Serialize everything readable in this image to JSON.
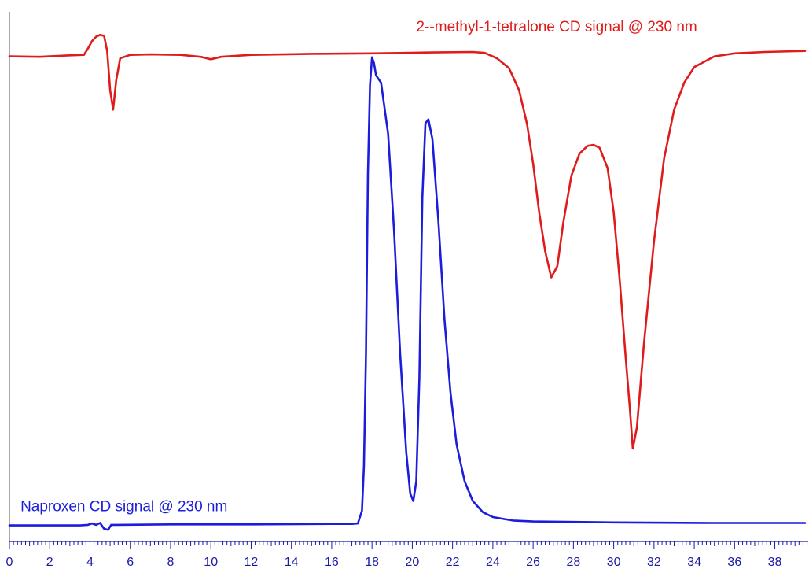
{
  "chart_data": {
    "type": "line",
    "xlim": [
      0,
      39.5
    ],
    "ylim": [
      -0.02,
      1.05
    ],
    "grid": false,
    "legend": "none",
    "x_major_ticks": [
      0,
      2,
      4,
      6,
      8,
      10,
      12,
      14,
      16,
      18,
      20,
      22,
      24,
      26,
      28,
      30,
      32,
      34,
      36,
      38
    ],
    "x_tick_labels": [
      "0",
      "2",
      "4",
      "6",
      "8",
      "10",
      "12",
      "14",
      "16",
      "18",
      "20",
      "22",
      "24",
      "26",
      "28",
      "30",
      "32",
      "34",
      "36",
      "38"
    ],
    "x_minor_step": 0.2,
    "axis_color": "#1a1aa6",
    "series": [
      {
        "color": "#e01b1b",
        "label": "2--methyl-1-tetralone CD signal @ 230 nm",
        "label_anchor": [
          20.2,
          1.01
        ],
        "points": [
          [
            0,
            0.959
          ],
          [
            1.5,
            0.958
          ],
          [
            3.0,
            0.961
          ],
          [
            3.7,
            0.962
          ],
          [
            3.9,
            0.975
          ],
          [
            4.1,
            0.99
          ],
          [
            4.3,
            0.999
          ],
          [
            4.5,
            1.003
          ],
          [
            4.7,
            1.001
          ],
          [
            4.85,
            0.97
          ],
          [
            5.0,
            0.89
          ],
          [
            5.15,
            0.85
          ],
          [
            5.3,
            0.91
          ],
          [
            5.5,
            0.955
          ],
          [
            6.0,
            0.962
          ],
          [
            7.0,
            0.963
          ],
          [
            8.5,
            0.962
          ],
          [
            9.5,
            0.958
          ],
          [
            10.0,
            0.953
          ],
          [
            10.5,
            0.958
          ],
          [
            12.0,
            0.962
          ],
          [
            15.0,
            0.964
          ],
          [
            18.0,
            0.965
          ],
          [
            21.0,
            0.967
          ],
          [
            23.0,
            0.968
          ],
          [
            23.6,
            0.966
          ],
          [
            24.2,
            0.955
          ],
          [
            24.8,
            0.935
          ],
          [
            25.3,
            0.89
          ],
          [
            25.7,
            0.82
          ],
          [
            26.0,
            0.74
          ],
          [
            26.3,
            0.64
          ],
          [
            26.6,
            0.56
          ],
          [
            26.9,
            0.507
          ],
          [
            27.2,
            0.53
          ],
          [
            27.5,
            0.62
          ],
          [
            27.9,
            0.715
          ],
          [
            28.3,
            0.76
          ],
          [
            28.7,
            0.776
          ],
          [
            29.0,
            0.778
          ],
          [
            29.3,
            0.772
          ],
          [
            29.7,
            0.73
          ],
          [
            30.0,
            0.64
          ],
          [
            30.3,
            0.5
          ],
          [
            30.6,
            0.34
          ],
          [
            30.8,
            0.24
          ],
          [
            30.95,
            0.157
          ],
          [
            31.15,
            0.2
          ],
          [
            31.5,
            0.37
          ],
          [
            32.0,
            0.58
          ],
          [
            32.5,
            0.75
          ],
          [
            33.0,
            0.85
          ],
          [
            33.5,
            0.905
          ],
          [
            34.0,
            0.937
          ],
          [
            35.0,
            0.959
          ],
          [
            36.0,
            0.965
          ],
          [
            37.5,
            0.968
          ],
          [
            39.5,
            0.97
          ]
        ]
      },
      {
        "color": "#1c1cdc",
        "label": "Naproxen CD signal @ 230 nm",
        "label_anchor": [
          0.55,
          0.029
        ],
        "points": [
          [
            0,
            0.0
          ],
          [
            3.5,
            0.0
          ],
          [
            3.9,
            0.001
          ],
          [
            4.1,
            0.004
          ],
          [
            4.3,
            0.001
          ],
          [
            4.5,
            0.005
          ],
          [
            4.7,
            -0.007
          ],
          [
            4.9,
            -0.009
          ],
          [
            5.05,
            0.001
          ],
          [
            5.3,
            0.001
          ],
          [
            8.0,
            0.002
          ],
          [
            12.0,
            0.002
          ],
          [
            16.0,
            0.003
          ],
          [
            17.0,
            0.003
          ],
          [
            17.3,
            0.004
          ],
          [
            17.5,
            0.03
          ],
          [
            17.6,
            0.12
          ],
          [
            17.7,
            0.35
          ],
          [
            17.8,
            0.72
          ],
          [
            17.9,
            0.9
          ],
          [
            18.0,
            0.957
          ],
          [
            18.1,
            0.945
          ],
          [
            18.2,
            0.92
          ],
          [
            18.45,
            0.905
          ],
          [
            18.8,
            0.8
          ],
          [
            19.1,
            0.6
          ],
          [
            19.4,
            0.35
          ],
          [
            19.7,
            0.15
          ],
          [
            19.9,
            0.065
          ],
          [
            20.05,
            0.05
          ],
          [
            20.2,
            0.09
          ],
          [
            20.35,
            0.3
          ],
          [
            20.5,
            0.67
          ],
          [
            20.65,
            0.822
          ],
          [
            20.8,
            0.83
          ],
          [
            21.0,
            0.79
          ],
          [
            21.3,
            0.62
          ],
          [
            21.6,
            0.42
          ],
          [
            21.9,
            0.27
          ],
          [
            22.2,
            0.165
          ],
          [
            22.6,
            0.09
          ],
          [
            23.0,
            0.05
          ],
          [
            23.5,
            0.027
          ],
          [
            24.0,
            0.017
          ],
          [
            25.0,
            0.01
          ],
          [
            26.0,
            0.008
          ],
          [
            30.0,
            0.006
          ],
          [
            35.0,
            0.005
          ],
          [
            39.5,
            0.005
          ]
        ]
      }
    ]
  }
}
